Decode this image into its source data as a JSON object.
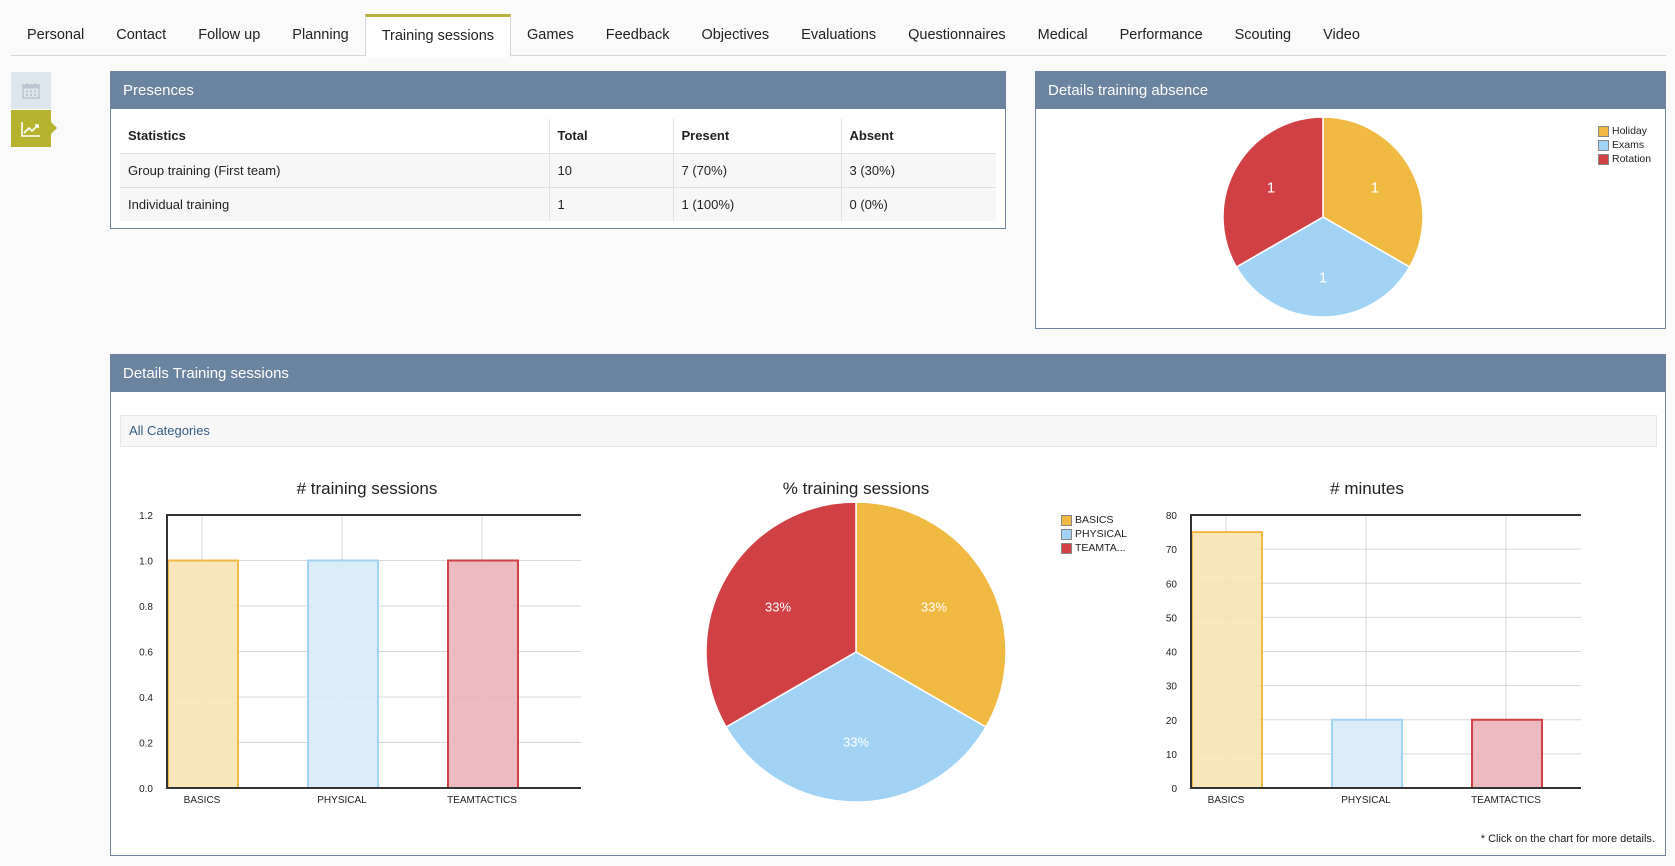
{
  "tabs": [
    "Personal",
    "Contact",
    "Follow up",
    "Planning",
    "Training sessions",
    "Games",
    "Feedback",
    "Objectives",
    "Evaluations",
    "Questionnaires",
    "Medical",
    "Performance",
    "Scouting",
    "Video"
  ],
  "active_tab": "Training sessions",
  "presences": {
    "title": "Presences",
    "headers": [
      "Statistics",
      "Total",
      "Present",
      "Absent"
    ],
    "rows": [
      [
        "Group training (First team)",
        "10",
        "7 (70%)",
        "3 (30%)"
      ],
      [
        "Individual training",
        "1",
        "1 (100%)",
        "0 (0%)"
      ]
    ]
  },
  "absence": {
    "title": "Details training absence"
  },
  "details": {
    "title": "Details Training sessions",
    "category": "All Categories",
    "note": "* Click on the chart for more details."
  },
  "colors": {
    "basics": "#f0b942",
    "physical": "#a2d3f5",
    "teamtactics": "#d04045"
  },
  "chart_data": [
    {
      "type": "pie",
      "labels": [
        "Holiday",
        "Exams",
        "Rotation"
      ],
      "values": [
        1,
        1,
        1
      ],
      "data_labels": [
        "1",
        "1",
        "1"
      ],
      "legend": "top-right"
    },
    {
      "type": "bar",
      "title": "# training sessions",
      "categories": [
        "BASICS",
        "PHYSICAL",
        "TEAMTACTICS"
      ],
      "values": [
        1,
        1,
        1
      ],
      "ylim": [
        0,
        1.2
      ],
      "yticks": [
        "0.0",
        "0.2",
        "0.4",
        "0.6",
        "0.8",
        "1.0",
        "1.2"
      ],
      "grid": true
    },
    {
      "type": "pie",
      "title": "% training sessions",
      "labels": [
        "BASICS",
        "PHYSICAL",
        "TEAMTA..."
      ],
      "values": [
        33.33,
        33.33,
        33.33
      ],
      "data_labels": [
        "33%",
        "33%",
        "33%"
      ],
      "legend": "top-right"
    },
    {
      "type": "bar",
      "title": "# minutes",
      "categories": [
        "BASICS",
        "PHYSICAL",
        "TEAMTACTICS"
      ],
      "values": [
        75,
        20,
        20
      ],
      "ylim": [
        0,
        80
      ],
      "yticks": [
        "0",
        "10",
        "20",
        "30",
        "40",
        "50",
        "60",
        "70",
        "80"
      ],
      "grid": true
    }
  ]
}
